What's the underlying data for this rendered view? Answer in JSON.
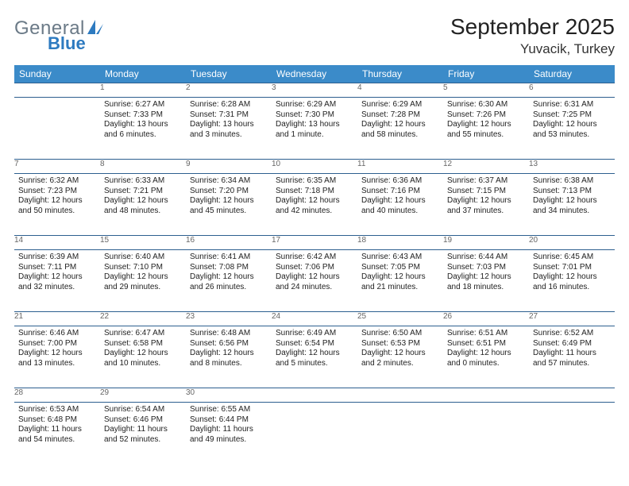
{
  "brand": {
    "line1": "General",
    "line2": "Blue"
  },
  "title": "September 2025",
  "location": "Yuvacik, Turkey",
  "colors": {
    "header_bg": "#3b8bc9",
    "header_fg": "#ffffff",
    "daynum_bg": "#eef1f3",
    "rule": "#2d5f8f",
    "logo_gray": "#6b7a87",
    "logo_blue": "#2d7ac0"
  },
  "dayNames": [
    "Sunday",
    "Monday",
    "Tuesday",
    "Wednesday",
    "Thursday",
    "Friday",
    "Saturday"
  ],
  "weeks": [
    [
      null,
      {
        "n": "1",
        "sr": "6:27 AM",
        "ss": "7:33 PM",
        "dl": "13 hours and 6 minutes."
      },
      {
        "n": "2",
        "sr": "6:28 AM",
        "ss": "7:31 PM",
        "dl": "13 hours and 3 minutes."
      },
      {
        "n": "3",
        "sr": "6:29 AM",
        "ss": "7:30 PM",
        "dl": "13 hours and 1 minute."
      },
      {
        "n": "4",
        "sr": "6:29 AM",
        "ss": "7:28 PM",
        "dl": "12 hours and 58 minutes."
      },
      {
        "n": "5",
        "sr": "6:30 AM",
        "ss": "7:26 PM",
        "dl": "12 hours and 55 minutes."
      },
      {
        "n": "6",
        "sr": "6:31 AM",
        "ss": "7:25 PM",
        "dl": "12 hours and 53 minutes."
      }
    ],
    [
      {
        "n": "7",
        "sr": "6:32 AM",
        "ss": "7:23 PM",
        "dl": "12 hours and 50 minutes."
      },
      {
        "n": "8",
        "sr": "6:33 AM",
        "ss": "7:21 PM",
        "dl": "12 hours and 48 minutes."
      },
      {
        "n": "9",
        "sr": "6:34 AM",
        "ss": "7:20 PM",
        "dl": "12 hours and 45 minutes."
      },
      {
        "n": "10",
        "sr": "6:35 AM",
        "ss": "7:18 PM",
        "dl": "12 hours and 42 minutes."
      },
      {
        "n": "11",
        "sr": "6:36 AM",
        "ss": "7:16 PM",
        "dl": "12 hours and 40 minutes."
      },
      {
        "n": "12",
        "sr": "6:37 AM",
        "ss": "7:15 PM",
        "dl": "12 hours and 37 minutes."
      },
      {
        "n": "13",
        "sr": "6:38 AM",
        "ss": "7:13 PM",
        "dl": "12 hours and 34 minutes."
      }
    ],
    [
      {
        "n": "14",
        "sr": "6:39 AM",
        "ss": "7:11 PM",
        "dl": "12 hours and 32 minutes."
      },
      {
        "n": "15",
        "sr": "6:40 AM",
        "ss": "7:10 PM",
        "dl": "12 hours and 29 minutes."
      },
      {
        "n": "16",
        "sr": "6:41 AM",
        "ss": "7:08 PM",
        "dl": "12 hours and 26 minutes."
      },
      {
        "n": "17",
        "sr": "6:42 AM",
        "ss": "7:06 PM",
        "dl": "12 hours and 24 minutes."
      },
      {
        "n": "18",
        "sr": "6:43 AM",
        "ss": "7:05 PM",
        "dl": "12 hours and 21 minutes."
      },
      {
        "n": "19",
        "sr": "6:44 AM",
        "ss": "7:03 PM",
        "dl": "12 hours and 18 minutes."
      },
      {
        "n": "20",
        "sr": "6:45 AM",
        "ss": "7:01 PM",
        "dl": "12 hours and 16 minutes."
      }
    ],
    [
      {
        "n": "21",
        "sr": "6:46 AM",
        "ss": "7:00 PM",
        "dl": "12 hours and 13 minutes."
      },
      {
        "n": "22",
        "sr": "6:47 AM",
        "ss": "6:58 PM",
        "dl": "12 hours and 10 minutes."
      },
      {
        "n": "23",
        "sr": "6:48 AM",
        "ss": "6:56 PM",
        "dl": "12 hours and 8 minutes."
      },
      {
        "n": "24",
        "sr": "6:49 AM",
        "ss": "6:54 PM",
        "dl": "12 hours and 5 minutes."
      },
      {
        "n": "25",
        "sr": "6:50 AM",
        "ss": "6:53 PM",
        "dl": "12 hours and 2 minutes."
      },
      {
        "n": "26",
        "sr": "6:51 AM",
        "ss": "6:51 PM",
        "dl": "12 hours and 0 minutes."
      },
      {
        "n": "27",
        "sr": "6:52 AM",
        "ss": "6:49 PM",
        "dl": "11 hours and 57 minutes."
      }
    ],
    [
      {
        "n": "28",
        "sr": "6:53 AM",
        "ss": "6:48 PM",
        "dl": "11 hours and 54 minutes."
      },
      {
        "n": "29",
        "sr": "6:54 AM",
        "ss": "6:46 PM",
        "dl": "11 hours and 52 minutes."
      },
      {
        "n": "30",
        "sr": "6:55 AM",
        "ss": "6:44 PM",
        "dl": "11 hours and 49 minutes."
      },
      null,
      null,
      null,
      null
    ]
  ],
  "labels": {
    "sunrise": "Sunrise:",
    "sunset": "Sunset:",
    "daylight": "Daylight:"
  }
}
